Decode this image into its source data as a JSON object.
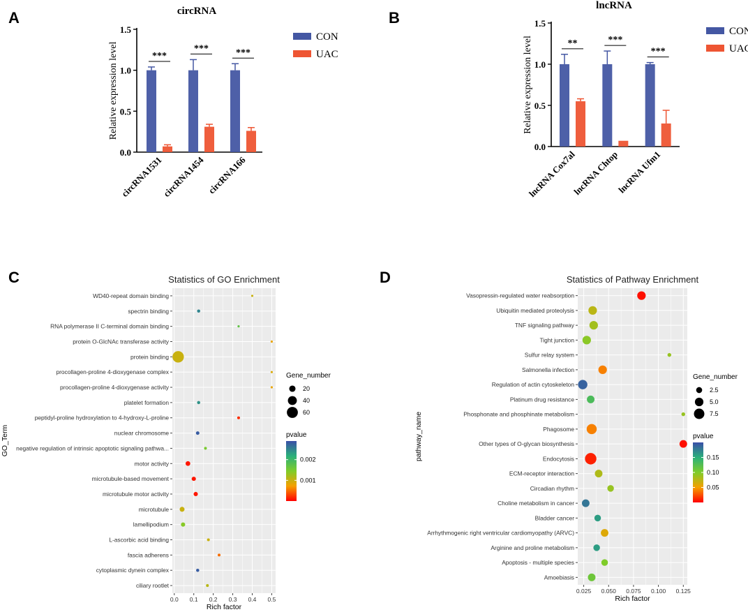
{
  "figure": {
    "panel_letters": {
      "a": "A",
      "b": "B",
      "c": "C",
      "d": "D"
    }
  },
  "colors": {
    "con": "#4457a3",
    "uac": "#ee5533",
    "grid_bg": "#ebebeb",
    "gradient": [
      "#ff0000",
      "#f5a000",
      "#7fcc2a",
      "#2ab07a",
      "#3a4fa8"
    ]
  },
  "chart_data": [
    {
      "id": "A",
      "type": "bar",
      "title": "circRNA",
      "ylabel": "Relative expression level",
      "ylim": [
        0,
        1.5
      ],
      "yticks": [
        "0.0",
        "0.5",
        "1.0",
        "1.5"
      ],
      "categories": [
        "circRNA1531",
        "circRNA1454",
        "circRNA166"
      ],
      "series": [
        {
          "name": "CON",
          "values": [
            1.0,
            1.0,
            1.0
          ],
          "errors": [
            0.04,
            0.13,
            0.08
          ]
        },
        {
          "name": "UAC",
          "values": [
            0.07,
            0.31,
            0.26
          ],
          "errors": [
            0.02,
            0.03,
            0.04
          ]
        }
      ],
      "significance": [
        "***",
        "***",
        "***"
      ]
    },
    {
      "id": "B",
      "type": "bar",
      "title": "lncRNA",
      "ylabel": "Relative expression level",
      "ylim": [
        0,
        1.5
      ],
      "yticks": [
        "0.0",
        "0.5",
        "1.0",
        "1.5"
      ],
      "categories": [
        "lncRNA Cox7al",
        "lncRNA Chtop",
        "lncRNA Ufm1"
      ],
      "series": [
        {
          "name": "CON",
          "values": [
            1.0,
            1.0,
            1.0
          ],
          "errors": [
            0.12,
            0.16,
            0.02
          ]
        },
        {
          "name": "UAC",
          "values": [
            0.55,
            0.07,
            0.28
          ],
          "errors": [
            0.03,
            0.0,
            0.16
          ]
        }
      ],
      "significance": [
        "**",
        "***",
        "***"
      ]
    },
    {
      "id": "C",
      "type": "scatter",
      "title": "Statistics of GO Enrichment",
      "xlabel": "Rich factor",
      "ylabel": "GO_Term",
      "xlim": [
        -0.01,
        0.52
      ],
      "xticks": [
        0.0,
        0.1,
        0.2,
        0.3,
        0.4,
        0.5
      ],
      "xtick_labels": [
        "0.0",
        "0.1",
        "0.2",
        "0.3",
        "0.4",
        "0.5"
      ],
      "size_legend": {
        "title": "Gene_number",
        "values": [
          20,
          40,
          60
        ],
        "labels": [
          "20",
          "40",
          "60"
        ]
      },
      "color_legend": {
        "title": "pvalue",
        "min": 0.0,
        "max": 0.0029,
        "labels": [
          "0.002",
          "0.001"
        ],
        "values": [
          0.002,
          0.001
        ]
      },
      "points": [
        {
          "term": "WD40-repeat domain binding",
          "x": 0.4,
          "size": 2,
          "p": 0.001
        },
        {
          "term": "spectrin binding",
          "x": 0.125,
          "size": 5,
          "p": 0.0025
        },
        {
          "term": "RNA polymerase II C-terminal domain binding",
          "x": 0.33,
          "size": 2,
          "p": 0.0017
        },
        {
          "term": "protein O-GlcNAc transferase activity",
          "x": 0.5,
          "size": 1,
          "p": 0.0008
        },
        {
          "term": "protein binding",
          "x": 0.02,
          "size": 65,
          "p": 0.001
        },
        {
          "term": "procollagen-proline 4-dioxygenase complex",
          "x": 0.5,
          "size": 1,
          "p": 0.0009
        },
        {
          "term": "procollagen-proline 4-dioxygenase activity",
          "x": 0.5,
          "size": 1,
          "p": 0.0008
        },
        {
          "term": "platelet formation",
          "x": 0.125,
          "size": 5,
          "p": 0.0024
        },
        {
          "term": "peptidyl-proline hydroxylation to 4-hydroxy-L-proline",
          "x": 0.33,
          "size": 4,
          "p": 0.0002
        },
        {
          "term": "nuclear chromosome",
          "x": 0.12,
          "size": 6,
          "p": 0.0028
        },
        {
          "term": "negative regulation of intrinsic apoptotic signaling pathwa...",
          "x": 0.16,
          "size": 4,
          "p": 0.0015
        },
        {
          "term": "motor activity",
          "x": 0.07,
          "size": 11,
          "p": 0.0001
        },
        {
          "term": "microtubule-based movement",
          "x": 0.1,
          "size": 9,
          "p": 0.0001
        },
        {
          "term": "microtubule motor activity",
          "x": 0.11,
          "size": 9,
          "p": 0.0001
        },
        {
          "term": "microtubule",
          "x": 0.04,
          "size": 12,
          "p": 0.001
        },
        {
          "term": "lamellipodium",
          "x": 0.045,
          "size": 9,
          "p": 0.0014
        },
        {
          "term": "L-ascorbic acid binding",
          "x": 0.175,
          "size": 4,
          "p": 0.001
        },
        {
          "term": "fascia adherens",
          "x": 0.23,
          "size": 4,
          "p": 0.0005
        },
        {
          "term": "cytoplasmic dynein complex",
          "x": 0.12,
          "size": 5,
          "p": 0.0028
        },
        {
          "term": "ciliary rootlet",
          "x": 0.17,
          "size": 4,
          "p": 0.0011
        }
      ]
    },
    {
      "id": "D",
      "type": "scatter",
      "title": "Statistics of Pathway Enrichment",
      "xlabel": "Rich factor",
      "ylabel": "pathway_name",
      "xlim": [
        0.019,
        0.129
      ],
      "xticks": [
        0.025,
        0.05,
        0.075,
        0.1,
        0.125
      ],
      "xtick_labels": [
        "0.025",
        "0.050",
        "0.075",
        "0.100",
        "0.125"
      ],
      "size_legend": {
        "title": "Gene_number",
        "values": [
          2.5,
          5.0,
          7.5
        ],
        "labels": [
          "2.5",
          "5.0",
          "7.5"
        ]
      },
      "color_legend": {
        "title": "pvalue",
        "min": 0.0,
        "max": 0.2,
        "labels": [
          "0.15",
          "0.10",
          "0.05"
        ],
        "values": [
          0.15,
          0.1,
          0.05
        ]
      },
      "points": [
        {
          "term": "Vasopressin-regulated water reabsorption",
          "x": 0.083,
          "size": 5,
          "p": 0.005
        },
        {
          "term": "Ubiquitin mediated proteolysis",
          "x": 0.034,
          "size": 5,
          "p": 0.075
        },
        {
          "term": "TNF signaling pathway",
          "x": 0.035,
          "size": 5,
          "p": 0.085
        },
        {
          "term": "Tight junction",
          "x": 0.028,
          "size": 5,
          "p": 0.095
        },
        {
          "term": "Sulfur relay system",
          "x": 0.111,
          "size": 1,
          "p": 0.09
        },
        {
          "term": "Salmonella infection",
          "x": 0.044,
          "size": 5,
          "p": 0.04
        },
        {
          "term": "Regulation of actin cytoskeleton",
          "x": 0.024,
          "size": 6,
          "p": 0.19
        },
        {
          "term": "Platinum drug resistance",
          "x": 0.032,
          "size": 4,
          "p": 0.13
        },
        {
          "term": "Phosphonate and phosphinate metabolism",
          "x": 0.125,
          "size": 1,
          "p": 0.09
        },
        {
          "term": "Phagosome",
          "x": 0.033,
          "size": 7,
          "p": 0.04
        },
        {
          "term": "Other types of O-glycan biosynthesis",
          "x": 0.125,
          "size": 4,
          "p": 0.005
        },
        {
          "term": "Endocytosis",
          "x": 0.032,
          "size": 9,
          "p": 0.01
        },
        {
          "term": "ECM-receptor interaction",
          "x": 0.04,
          "size": 4,
          "p": 0.08
        },
        {
          "term": "Circadian rhythm",
          "x": 0.052,
          "size": 3,
          "p": 0.09
        },
        {
          "term": "Choline metabolism in cancer",
          "x": 0.027,
          "size": 4,
          "p": 0.18
        },
        {
          "term": "Bladder cancer",
          "x": 0.039,
          "size": 3,
          "p": 0.16
        },
        {
          "term": "Arrhythmogenic right ventricular cardiomyopathy (ARVC)",
          "x": 0.046,
          "size": 4,
          "p": 0.06
        },
        {
          "term": "Arginine and proline metabolism",
          "x": 0.038,
          "size": 3,
          "p": 0.16
        },
        {
          "term": "Apoptosis - multiple species",
          "x": 0.046,
          "size": 3,
          "p": 0.1
        },
        {
          "term": "Amoebiasis",
          "x": 0.033,
          "size": 4,
          "p": 0.11
        }
      ]
    }
  ]
}
